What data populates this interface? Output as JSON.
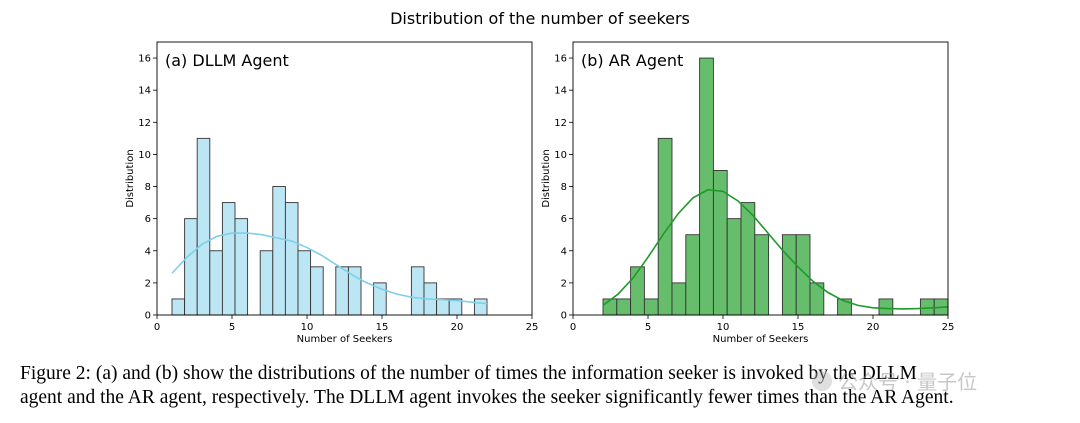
{
  "figure_title": "Distribution of the number of seekers",
  "caption": {
    "line1": "Figure 2: (a) and (b) show the distributions of the number of times the information seeker is invoked by the DLLM",
    "line2": "agent and the AR agent, respectively. The DLLM agent invokes the seeker significantly fewer times than the AR Agent."
  },
  "watermark": "公众号 · 量子位",
  "chart_data": [
    {
      "type": "bar",
      "title": "(a) DLLM Agent",
      "xlabel": "Number of Seekers",
      "ylabel": "Distribution",
      "xlim": [
        0,
        25
      ],
      "ylim": [
        0,
        17
      ],
      "xticks": [
        0,
        5,
        10,
        15,
        20,
        25
      ],
      "yticks": [
        0,
        2,
        4,
        6,
        8,
        10,
        12,
        14,
        16
      ],
      "bin_edges": [
        1,
        1.84,
        2.68,
        3.52,
        4.36,
        5.2,
        6.04,
        6.88,
        7.72,
        8.56,
        9.4,
        10.24,
        11.08,
        11.92,
        12.76,
        13.6,
        14.44,
        15.28,
        16.12,
        16.96,
        17.8,
        18.64,
        19.48,
        20.32,
        21.16,
        22
      ],
      "values": [
        1,
        6,
        11,
        4,
        7,
        6,
        0,
        4,
        8,
        7,
        4,
        3,
        0,
        3,
        3,
        0,
        2,
        0,
        0,
        3,
        2,
        1,
        1,
        0,
        1
      ],
      "fill": "#bde6f4",
      "kde": {
        "color": "#7dd0ea",
        "x": [
          1,
          2,
          3,
          4,
          5,
          6,
          7,
          8,
          9,
          10,
          11,
          12,
          13,
          14,
          15,
          16,
          17,
          18,
          19,
          20,
          21,
          22
        ],
        "y": [
          2.6,
          3.6,
          4.4,
          4.9,
          5.1,
          5.1,
          5.0,
          4.8,
          4.6,
          4.2,
          3.7,
          3.1,
          2.5,
          2.0,
          1.6,
          1.3,
          1.1,
          1.0,
          0.95,
          0.9,
          0.8,
          0.7
        ]
      }
    },
    {
      "type": "bar",
      "title": "(b) AR Agent",
      "xlabel": "Number of Seekers",
      "ylabel": "Distribution",
      "xlim": [
        0,
        25
      ],
      "ylim": [
        0,
        17
      ],
      "xticks": [
        0,
        5,
        10,
        15,
        20,
        25
      ],
      "yticks": [
        0,
        2,
        4,
        6,
        8,
        10,
        12,
        14,
        16
      ],
      "bin_edges": [
        2,
        2.92,
        3.84,
        4.76,
        5.68,
        6.6,
        7.52,
        8.44,
        9.36,
        10.28,
        11.2,
        12.12,
        13.04,
        13.96,
        14.88,
        15.8,
        16.72,
        17.64,
        18.56,
        19.48,
        20.4,
        21.32,
        22.24,
        23.16,
        24.08,
        25
      ],
      "values": [
        1,
        1,
        3,
        1,
        11,
        2,
        5,
        16,
        9,
        6,
        7,
        5,
        0,
        5,
        5,
        2,
        0,
        1,
        0,
        0,
        1,
        0,
        0,
        1,
        1
      ],
      "fill": "#66be6c",
      "kde": {
        "color": "#1d9a2a",
        "x": [
          2,
          3,
          4,
          5,
          6,
          7,
          8,
          9,
          10,
          11,
          12,
          13,
          14,
          15,
          16,
          17,
          18,
          19,
          20,
          21,
          22,
          23,
          24,
          25
        ],
        "y": [
          0.6,
          1.3,
          2.3,
          3.6,
          5.0,
          6.3,
          7.3,
          7.8,
          7.7,
          7.1,
          6.2,
          5.1,
          4.0,
          3.0,
          2.1,
          1.4,
          0.9,
          0.6,
          0.45,
          0.4,
          0.38,
          0.4,
          0.45,
          0.5
        ]
      }
    }
  ]
}
